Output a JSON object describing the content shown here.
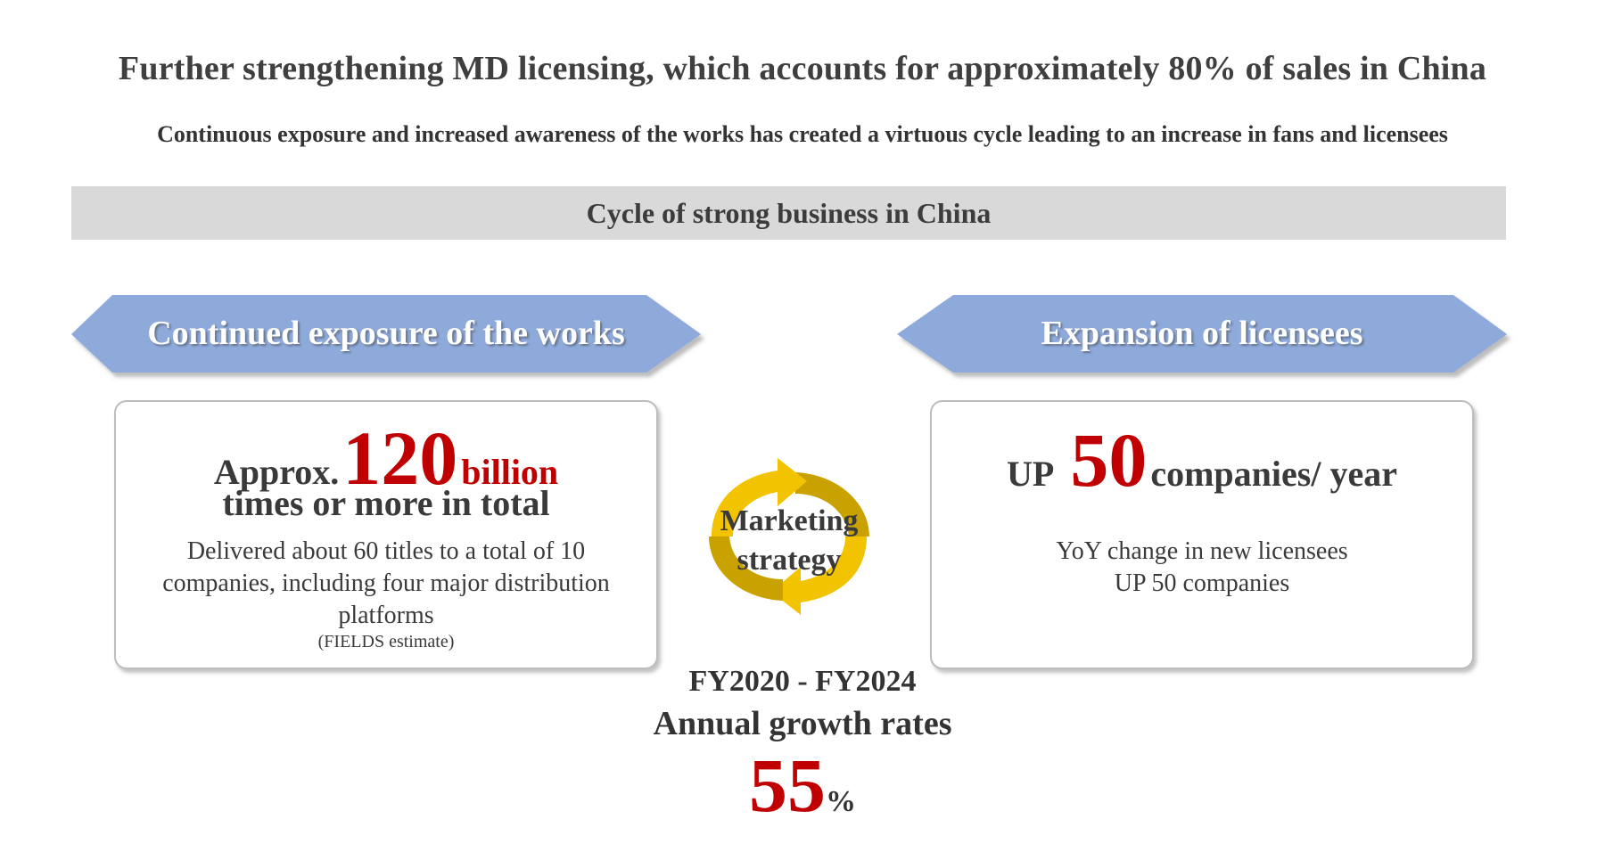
{
  "header": {
    "title": "Further strengthening MD licensing, which accounts for approximately 80% of sales in China",
    "subtitle": "Continuous exposure and increased awareness of the works has created a virtuous cycle leading to an increase in fans and licensees"
  },
  "banner": {
    "label": "Cycle of strong business in China"
  },
  "left": {
    "arrow_label": "Continued exposure of the works",
    "prefix": "Approx.",
    "number": "120",
    "unit": "billion",
    "line2": "times or more in total",
    "description": "Delivered about 60 titles to a total of 10 companies, including four major distribution platforms",
    "note": "(FIELDS estimate)"
  },
  "right": {
    "arrow_label": "Expansion of licensees",
    "prefix": "UP",
    "number": "50",
    "unit": "companies/ year",
    "description_line1": "YoY change in new licensees",
    "description_line2": "UP 50 companies"
  },
  "center": {
    "line1": "Marketing",
    "line2": "strategy"
  },
  "bottom": {
    "period": "FY2020 - FY2024",
    "label": "Annual growth rates",
    "value": "55",
    "unit": "%"
  },
  "colors": {
    "arrow_fill": "#8eaadb",
    "cycle_gold": "#f2c300",
    "cycle_dark_gold": "#c9a200",
    "accent_red": "#c00000",
    "banner_bg": "#d9d9d9"
  }
}
